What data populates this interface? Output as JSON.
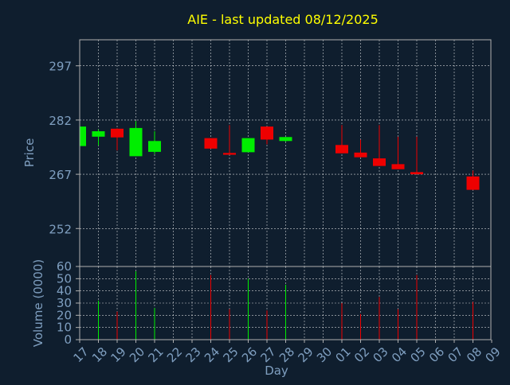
{
  "chart_data": {
    "type": "candlestick",
    "title": "AIE - last updated 08/12/2025",
    "xlabel": "Day",
    "price_panel": {
      "ylabel": "Price",
      "yticks": [
        252,
        267,
        282,
        297
      ],
      "ylim": [
        241.5,
        304.2
      ]
    },
    "volume_panel": {
      "ylabel": "Volume (0000)",
      "yticks": [
        0,
        10,
        20,
        30,
        40,
        50,
        60
      ],
      "ylim": [
        0,
        60
      ]
    },
    "x_tick_labels": [
      "17",
      "18",
      "19",
      "20",
      "21",
      "22",
      "23",
      "24",
      "25",
      "26",
      "27",
      "28",
      "29",
      "30",
      "01",
      "02",
      "03",
      "04",
      "05",
      "06",
      "07",
      "08",
      "09"
    ],
    "candles": [
      {
        "day": "17",
        "open": 274.8,
        "high": 280.6,
        "low": 274.8,
        "close": 280.2,
        "volume": 0
      },
      {
        "day": "18",
        "open": 277.4,
        "high": 279.4,
        "low": 275.0,
        "close": 278.9,
        "volume": 32
      },
      {
        "day": "19",
        "open": 279.6,
        "high": 279.7,
        "low": 273.6,
        "close": 277.2,
        "volume": 23
      },
      {
        "day": "20",
        "open": 272.0,
        "high": 281.7,
        "low": 272.0,
        "close": 279.8,
        "volume": 56
      },
      {
        "day": "21",
        "open": 273.2,
        "high": 278.9,
        "low": 272.6,
        "close": 276.2,
        "volume": 26
      },
      {
        "day": "22",
        "open": null,
        "high": null,
        "low": null,
        "close": null,
        "volume": 0
      },
      {
        "day": "23",
        "open": null,
        "high": null,
        "low": null,
        "close": null,
        "volume": 0
      },
      {
        "day": "24",
        "open": 277.0,
        "high": 277.0,
        "low": 274.1,
        "close": 274.1,
        "volume": 53
      },
      {
        "day": "25",
        "open": 272.9,
        "high": 280.6,
        "low": 272.4,
        "close": 272.4,
        "volume": 25
      },
      {
        "day": "26",
        "open": 273.1,
        "high": 277.0,
        "low": 273.1,
        "close": 277.0,
        "volume": 50
      },
      {
        "day": "27",
        "open": 280.2,
        "high": 280.2,
        "low": 275.3,
        "close": 276.6,
        "volume": 24
      },
      {
        "day": "28",
        "open": 276.2,
        "high": 277.3,
        "low": 276.0,
        "close": 277.3,
        "volume": 45
      },
      {
        "day": "29",
        "open": null,
        "high": null,
        "low": null,
        "close": null,
        "volume": 0
      },
      {
        "day": "30",
        "open": null,
        "high": null,
        "low": null,
        "close": null,
        "volume": 0
      },
      {
        "day": "01",
        "open": 275.1,
        "high": 280.6,
        "low": 272.8,
        "close": 272.8,
        "volume": 30
      },
      {
        "day": "02",
        "open": 273.0,
        "high": 276.6,
        "low": 271.7,
        "close": 271.7,
        "volume": 21
      },
      {
        "day": "03",
        "open": 271.4,
        "high": 280.6,
        "low": 269.3,
        "close": 269.3,
        "volume": 35
      },
      {
        "day": "04",
        "open": 269.8,
        "high": 277.4,
        "low": 268.4,
        "close": 268.4,
        "volume": 25
      },
      {
        "day": "05",
        "open": 267.6,
        "high": 277.4,
        "low": 267.0,
        "close": 267.0,
        "volume": 53
      },
      {
        "day": "06",
        "open": null,
        "high": null,
        "low": null,
        "close": null,
        "volume": 0
      },
      {
        "day": "07",
        "open": null,
        "high": null,
        "low": null,
        "close": null,
        "volume": 0
      },
      {
        "day": "08",
        "open": 266.4,
        "high": 268.0,
        "low": 262.7,
        "close": 262.7,
        "volume": 31
      },
      {
        "day": "09",
        "open": null,
        "high": null,
        "low": null,
        "close": null,
        "volume": 0
      }
    ],
    "colors": {
      "background": "#0f1e2e",
      "up": "#00ee00",
      "down": "#ee0000",
      "title": "#ffff00",
      "axis_text": "#7f9fc0",
      "frame": "#b0b0b0",
      "grid": "#ffffff"
    },
    "grid": true
  }
}
